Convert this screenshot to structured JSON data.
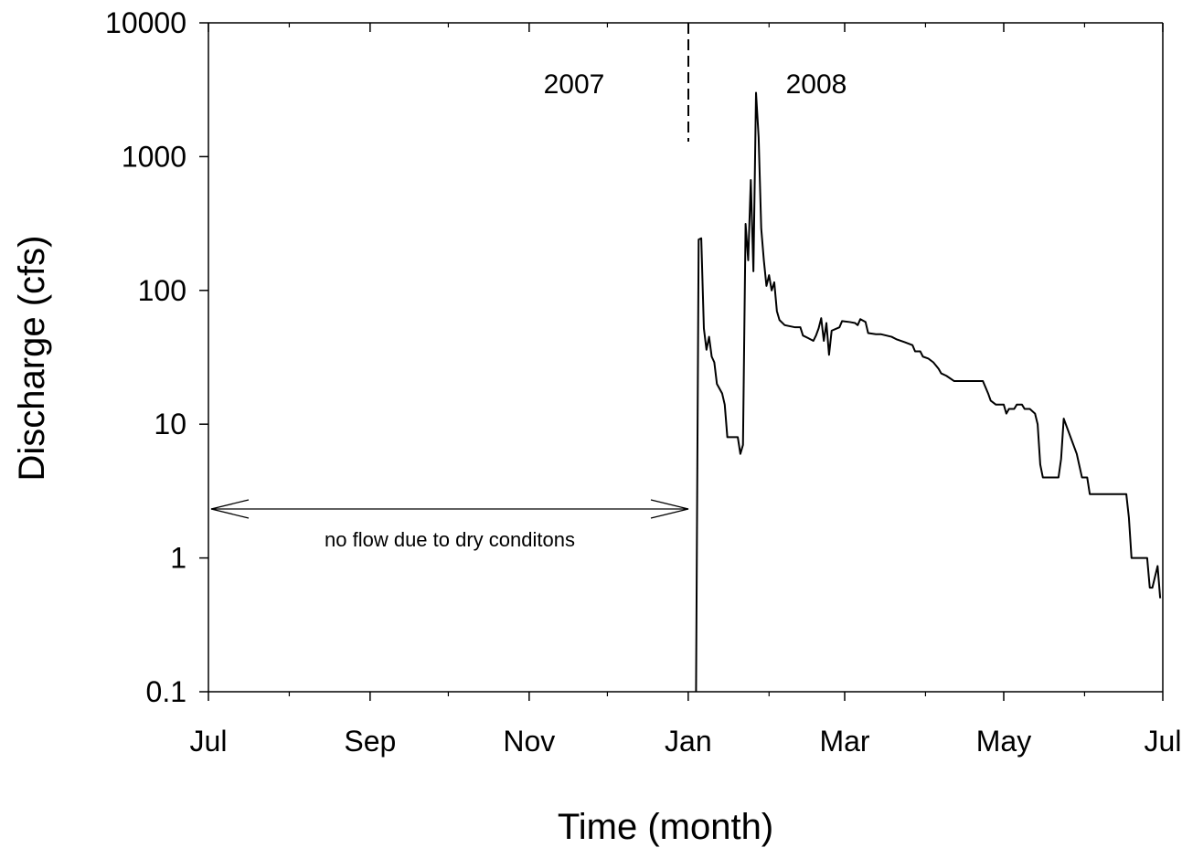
{
  "chart_data": {
    "type": "line",
    "xlabel": "Time (month)",
    "ylabel": "Discharge (cfs)",
    "annotations": [
      "2007",
      "2008",
      "no flow due to dry conditons"
    ],
    "log_y": true,
    "color": "#000000",
    "xlim": [
      0,
      366
    ],
    "xticks": [
      {
        "value": 0,
        "label": "Jul"
      },
      {
        "value": 62,
        "label": "Sep"
      },
      {
        "value": 123,
        "label": "Nov"
      },
      {
        "value": 184,
        "label": "Jan"
      },
      {
        "value": 244,
        "label": "Mar"
      },
      {
        "value": 305,
        "label": "May"
      },
      {
        "value": 366,
        "label": "Jul"
      }
    ],
    "minor_xticks": [
      31,
      92,
      153,
      215,
      275,
      336
    ],
    "ylim": [
      0.1,
      10000
    ],
    "yticks": [
      0.1,
      1,
      10,
      100,
      1000,
      10000
    ],
    "x": [
      187,
      188,
      189,
      190,
      191,
      192,
      193,
      194,
      195,
      197,
      198,
      199,
      203,
      204,
      205,
      206,
      207,
      208,
      209,
      210,
      211,
      212,
      213,
      214,
      215,
      216,
      217,
      218,
      219,
      221,
      225,
      227,
      228,
      230,
      232,
      233,
      234,
      235,
      236,
      237,
      238,
      239,
      242,
      243,
      246,
      248,
      249,
      250,
      252,
      253,
      256,
      258,
      260,
      262,
      264,
      267,
      270,
      271,
      273,
      274,
      276,
      278,
      280,
      281,
      283,
      286,
      290,
      297,
      299,
      300,
      302,
      305,
      306,
      307,
      309,
      310,
      312,
      313,
      315,
      317,
      318,
      319,
      320,
      326,
      327,
      328,
      333,
      335,
      337,
      338,
      352,
      353,
      354,
      360,
      361,
      362,
      364,
      365
    ],
    "values": [
      0.1,
      240,
      245,
      52,
      36,
      45,
      32,
      29,
      20,
      17,
      14,
      8,
      8,
      6,
      7,
      314,
      168,
      668,
      139,
      3000,
      1400,
      290,
      168,
      108,
      130,
      100,
      115,
      70,
      60,
      55,
      53,
      53,
      46,
      44,
      42,
      46,
      52,
      62,
      42,
      57,
      33,
      50,
      53,
      59,
      58,
      57,
      55,
      61,
      58,
      48,
      47,
      47,
      46,
      45,
      43,
      41,
      39,
      35,
      35,
      32,
      31,
      29,
      26,
      24,
      23,
      21,
      21,
      21,
      17,
      15,
      14,
      14,
      12,
      13,
      13,
      14,
      14,
      13,
      13,
      12,
      10,
      5,
      4,
      4,
      5.5,
      11,
      6,
      4,
      4,
      3,
      3,
      2,
      1,
      1,
      0.6,
      0.6,
      0.87,
      0.5
    ]
  }
}
